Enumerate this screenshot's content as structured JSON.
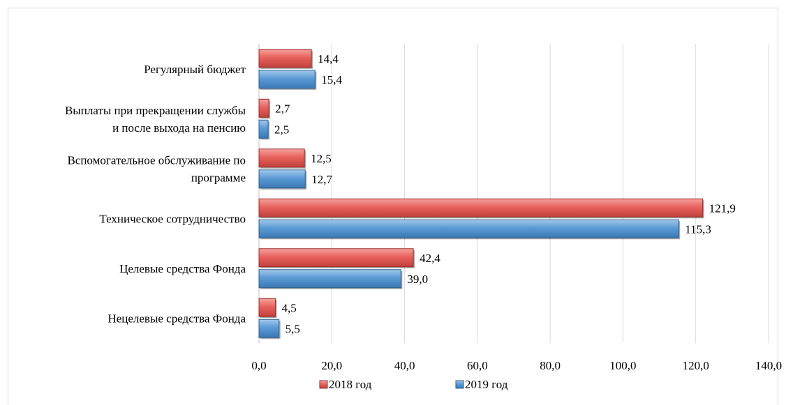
{
  "chart_data": {
    "type": "bar",
    "orientation": "horizontal",
    "categories": [
      [
        "Регулярный бюджет"
      ],
      [
        "Выплаты при прекращении службы",
        "и после выхода на пенсию"
      ],
      [
        "Вспомогательное обслуживание по",
        "программе"
      ],
      [
        "Техническое сотрудничество"
      ],
      [
        "Целевые средства Фонда"
      ],
      [
        "Нецелевые средства Фонда"
      ]
    ],
    "series": [
      {
        "name": "2018 год",
        "values": [
          14.4,
          2.7,
          12.5,
          121.9,
          42.4,
          4.5
        ],
        "labels": [
          "14,4",
          "2,7",
          "12,5",
          "121,9",
          "42,4",
          "4,5"
        ],
        "color": "#e8625d"
      },
      {
        "name": "2019 год",
        "values": [
          15.4,
          2.5,
          12.7,
          115.3,
          39.0,
          5.5
        ],
        "labels": [
          "15,4",
          "2,5",
          "12,7",
          "115,3",
          "39,0",
          "5,5"
        ],
        "color": "#5b9bd5"
      }
    ],
    "xlim": [
      0,
      140
    ],
    "ticks": [
      0,
      20,
      40,
      60,
      80,
      100,
      120,
      140
    ],
    "tick_labels": [
      "0,0",
      "20,0",
      "40,0",
      "60,0",
      "80,0",
      "100,0",
      "120,0",
      "140,0"
    ],
    "grid": true,
    "legend_position": "bottom",
    "title": "",
    "xlabel": "",
    "ylabel": ""
  }
}
